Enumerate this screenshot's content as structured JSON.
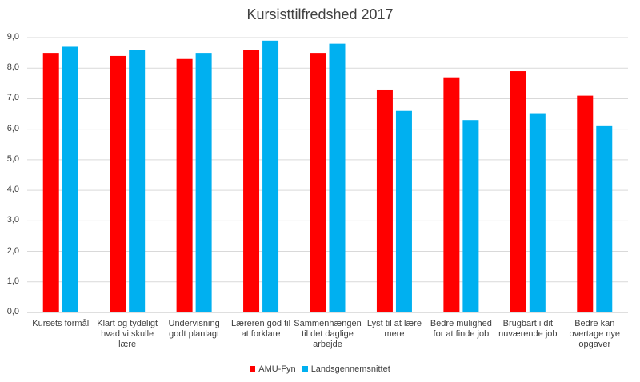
{
  "chart_data": {
    "type": "bar",
    "title": "Kursisttilfredshed 2017",
    "xlabel": "",
    "ylabel": "",
    "ylim": [
      0,
      9
    ],
    "yticks": [
      "0,0",
      "1,0",
      "2,0",
      "3,0",
      "4,0",
      "5,0",
      "6,0",
      "7,0",
      "8,0",
      "9,0"
    ],
    "grid": true,
    "legend_position": "bottom",
    "categories": [
      [
        "Kursets formål"
      ],
      [
        "Klart og tydeligt",
        "hvad vi skulle",
        "lære"
      ],
      [
        "Undervisning",
        "godt planlagt"
      ],
      [
        "Læreren god til",
        "at forklare"
      ],
      [
        "Sammenhængen",
        "til det daglige",
        "arbejde"
      ],
      [
        "Lyst til at lære",
        "mere"
      ],
      [
        "Bedre mulighed",
        "for at finde job"
      ],
      [
        "Brugbart i dit",
        "nuværende job"
      ],
      [
        "Bedre kan",
        "overtage nye",
        "opgaver"
      ]
    ],
    "series": [
      {
        "name": "AMU-Fyn",
        "color": "#ff0000",
        "values": [
          8.5,
          8.4,
          8.3,
          8.6,
          8.5,
          7.3,
          7.7,
          7.9,
          7.1
        ]
      },
      {
        "name": "Landsgennemsnittet",
        "color": "#00b0f0",
        "values": [
          8.7,
          8.6,
          8.5,
          8.9,
          8.8,
          6.6,
          6.3,
          6.5,
          6.1
        ]
      }
    ]
  }
}
